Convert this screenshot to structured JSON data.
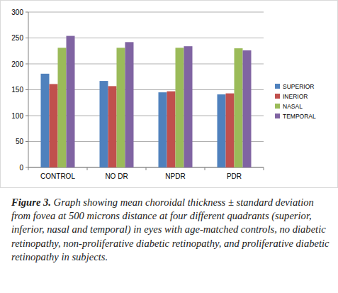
{
  "chart_data": {
    "type": "bar",
    "categories": [
      "CONTROL",
      "NO DR",
      "NPDR",
      "PDR"
    ],
    "series": [
      {
        "name": "SUPERIOR",
        "color": "#4f81bd",
        "values": [
          181,
          167,
          145,
          141
        ]
      },
      {
        "name": "INERIOR",
        "color": "#c0504d",
        "values": [
          161,
          157,
          147,
          143
        ]
      },
      {
        "name": "NASAL",
        "color": "#9bbb59",
        "values": [
          231,
          231,
          231,
          230
        ]
      },
      {
        "name": "TEMPORAL",
        "color": "#8064a2",
        "values": [
          254,
          242,
          234,
          226
        ]
      }
    ],
    "ylim": [
      0,
      300
    ],
    "yticks": [
      0,
      50,
      100,
      150,
      200,
      250,
      300
    ],
    "grid": true,
    "legend": "right"
  },
  "caption": {
    "label": "Figure 3.",
    "text": "Graph showing mean choroidal thickness ± standard deviation from fovea at 500 microns distance at four different quadrants (superior, inferior, nasal and temporal) in eyes with age-matched controls, no diabetic retinopathy, non-proliferative diabetic retinopathy, and proliferative diabetic retinopathy in subjects."
  }
}
